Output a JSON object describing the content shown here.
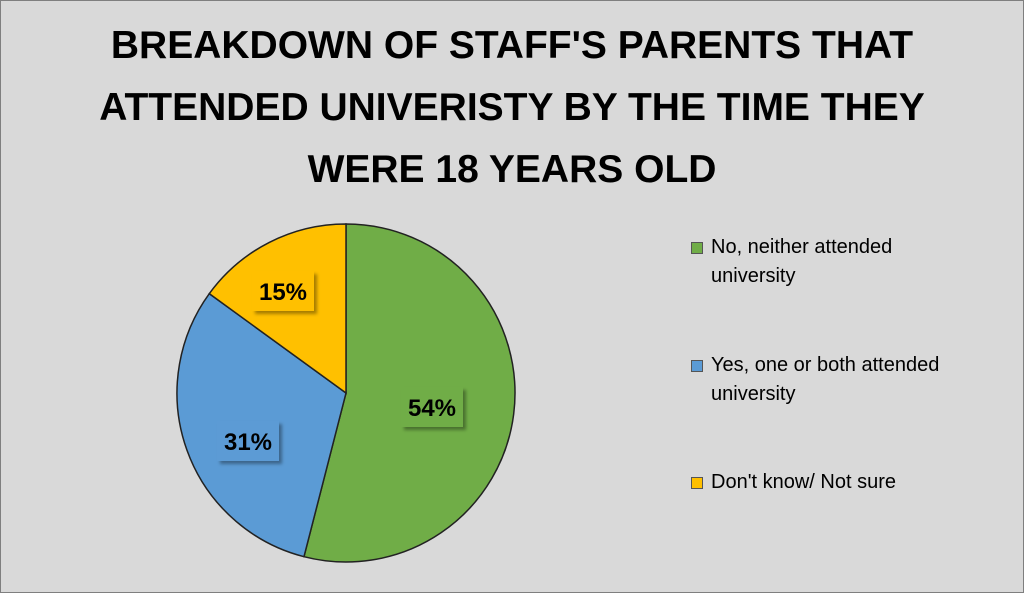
{
  "chart_data": {
    "type": "pie",
    "title_lines": [
      "BREAKDOWN OF STAFF'S PARENTS THAT",
      "ATTENDED UNIVERISTY BY THE TIME THEY",
      "WERE 18 YEARS OLD"
    ],
    "slices": [
      {
        "label": "No, neither attended university",
        "label_lines": [
          "No, neither attended",
          "university"
        ],
        "value": 54,
        "display": "54%",
        "color": "#70ad47"
      },
      {
        "label": "Yes, one or both attended university",
        "label_lines": [
          "Yes, one or both attended",
          "university"
        ],
        "value": 31,
        "display": "31%",
        "color": "#5b9bd5"
      },
      {
        "label": "Don't know/ Not sure",
        "label_lines": [
          "Don't know/ Not sure"
        ],
        "value": 15,
        "display": "15%",
        "color": "#ffc000"
      }
    ],
    "legend_position": "right"
  }
}
